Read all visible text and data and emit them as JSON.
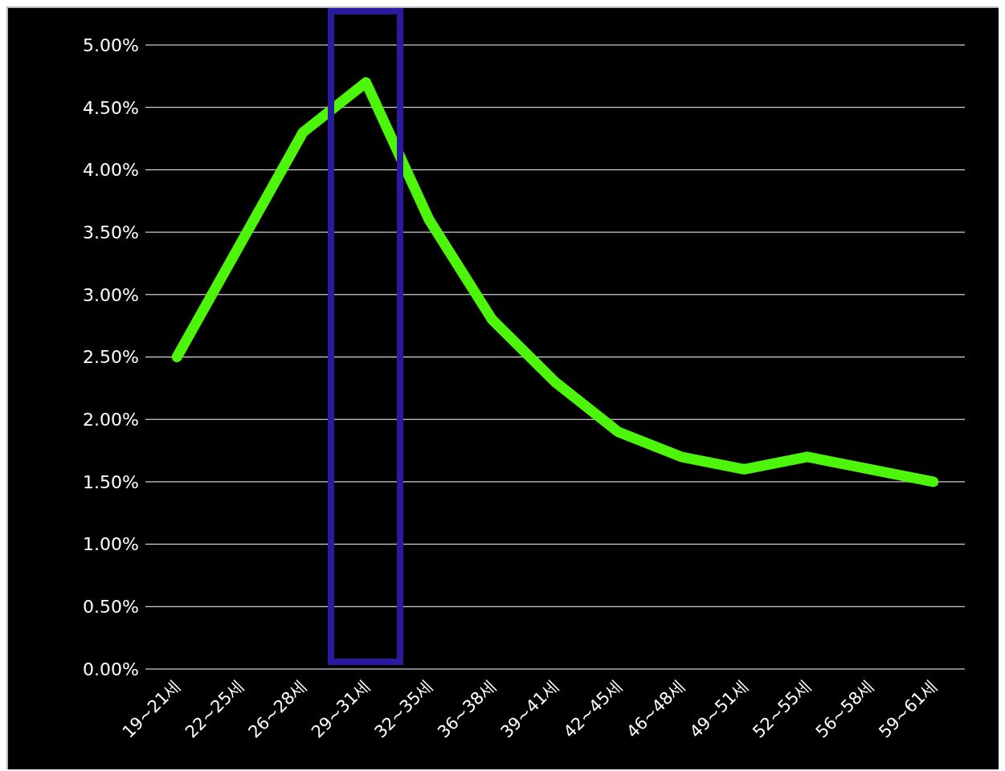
{
  "chart_data": {
    "type": "line",
    "categories": [
      "19~21세",
      "22~25세",
      "26~28세",
      "29~31세",
      "32~35세",
      "36~38세",
      "39~41세",
      "42~45세",
      "46~48세",
      "49~51세",
      "52~55세",
      "56~58세",
      "59~61세"
    ],
    "series": [
      {
        "color": "#4cf50a",
        "values": [
          2.5,
          3.4,
          4.3,
          4.7,
          3.6,
          2.8,
          2.3,
          1.9,
          1.7,
          1.6,
          1.7,
          1.6,
          1.5
        ]
      }
    ],
    "ylim": [
      0,
      5
    ],
    "yticks": [
      {
        "value": 0,
        "label": "0.00%"
      },
      {
        "value": 0.5,
        "label": "0.50%"
      },
      {
        "value": 1,
        "label": "1.00%"
      },
      {
        "value": 1.5,
        "label": "1.50%"
      },
      {
        "value": 2,
        "label": "2.00%"
      },
      {
        "value": 2.5,
        "label": "2.50%"
      },
      {
        "value": 3,
        "label": "3.00%"
      },
      {
        "value": 3.5,
        "label": "3.50%"
      },
      {
        "value": 4,
        "label": "4.00%"
      },
      {
        "value": 4.5,
        "label": "4.50%"
      },
      {
        "value": 5,
        "label": "5.00%"
      }
    ],
    "grid": "y",
    "marker": "none",
    "line_style": "solid"
  }
}
